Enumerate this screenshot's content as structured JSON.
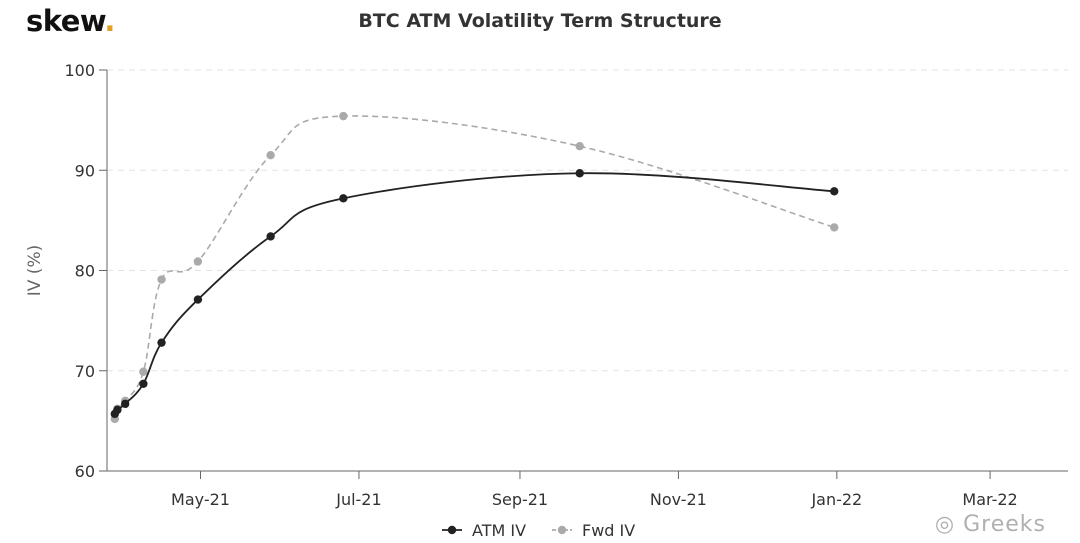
{
  "brand": {
    "name": "skew",
    "dot": "."
  },
  "watermark": "Greeks",
  "chart_data": {
    "type": "line",
    "title": "BTC ATM Volatility Term Structure",
    "xlabel": "",
    "ylabel": "IV (%)",
    "ylim": [
      60,
      100
    ],
    "xlim": [
      "2021-03-26",
      "2022-03-31"
    ],
    "yticks": [
      60,
      70,
      80,
      90,
      100
    ],
    "xticks": [
      {
        "date": "2021-05-01",
        "label": "May-21"
      },
      {
        "date": "2021-07-01",
        "label": "Jul-21"
      },
      {
        "date": "2021-09-01",
        "label": "Sep-21"
      },
      {
        "date": "2021-11-01",
        "label": "Nov-21"
      },
      {
        "date": "2022-01-01",
        "label": "Jan-22"
      },
      {
        "date": "2022-03-01",
        "label": "Mar-22"
      }
    ],
    "grid": "horizontal-dashed",
    "legend": "bottom-center",
    "series": [
      {
        "name": "ATM IV",
        "color": "#222222",
        "dash": "solid",
        "points": [
          {
            "x": "2021-03-29",
            "y": 65.7
          },
          {
            "x": "2021-03-30",
            "y": 66.1
          },
          {
            "x": "2021-04-02",
            "y": 66.7
          },
          {
            "x": "2021-04-09",
            "y": 68.7
          },
          {
            "x": "2021-04-16",
            "y": 72.8
          },
          {
            "x": "2021-04-30",
            "y": 77.1
          },
          {
            "x": "2021-05-28",
            "y": 83.4
          },
          {
            "x": "2021-06-25",
            "y": 87.2
          },
          {
            "x": "2021-09-24",
            "y": 89.7
          },
          {
            "x": "2021-12-31",
            "y": 87.9
          }
        ]
      },
      {
        "name": "Fwd IV",
        "color": "#aaaaaa",
        "dash": "dashed",
        "points": [
          {
            "x": "2021-03-29",
            "y": 65.2
          },
          {
            "x": "2021-03-30",
            "y": 66.2
          },
          {
            "x": "2021-04-02",
            "y": 67.0
          },
          {
            "x": "2021-04-09",
            "y": 69.9
          },
          {
            "x": "2021-04-16",
            "y": 79.1
          },
          {
            "x": "2021-04-30",
            "y": 80.9
          },
          {
            "x": "2021-05-28",
            "y": 91.5
          },
          {
            "x": "2021-06-25",
            "y": 95.4
          },
          {
            "x": "2021-09-24",
            "y": 92.4
          },
          {
            "x": "2021-12-31",
            "y": 84.3
          }
        ]
      }
    ]
  }
}
